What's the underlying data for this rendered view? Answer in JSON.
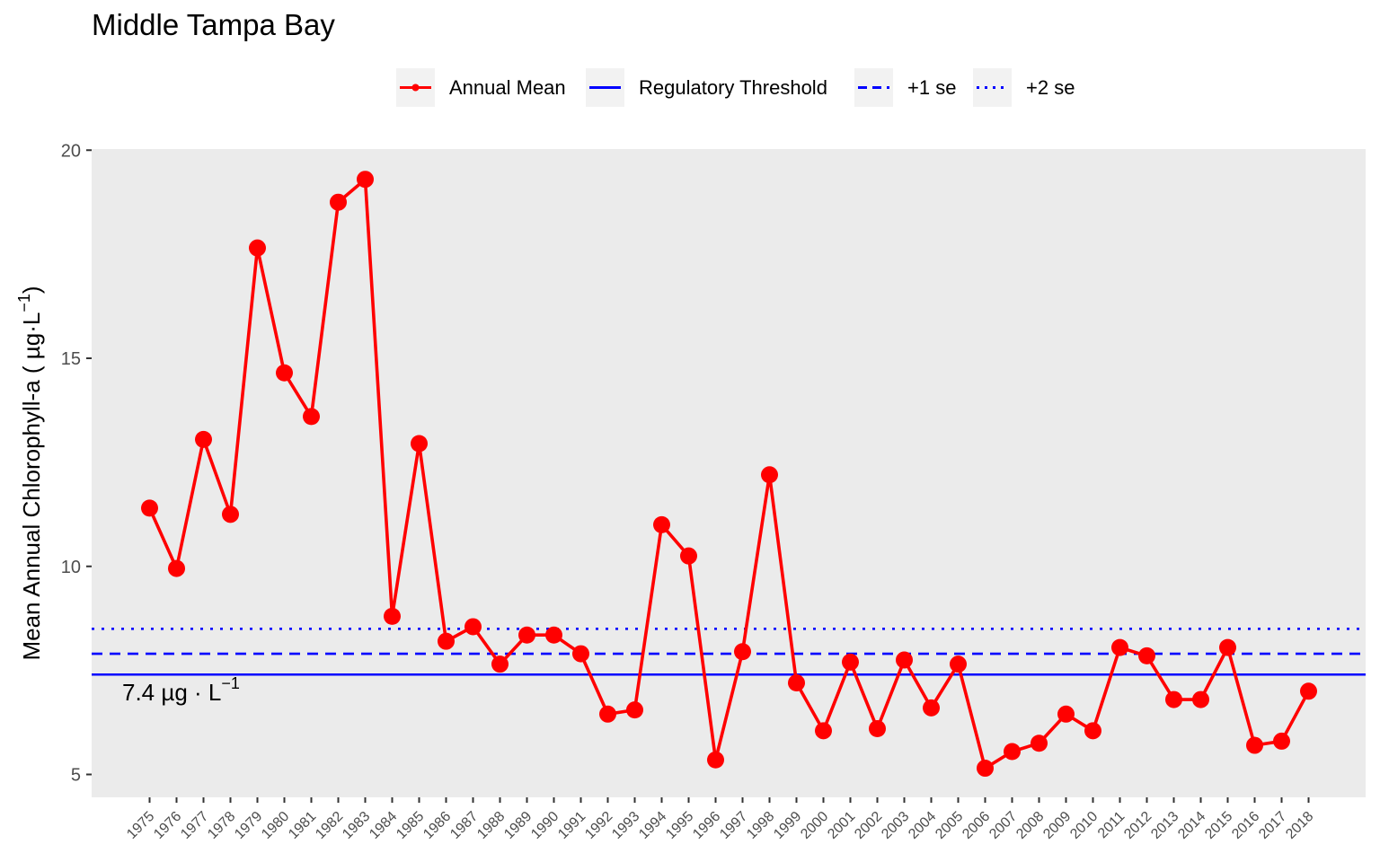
{
  "chart_data": {
    "type": "line",
    "title": "Middle Tampa Bay",
    "ylabel_main": "Mean Annual Chlorophyll-a ( µg·L",
    "ylabel_sup": "−1",
    "ylabel_close": ")",
    "ylim": [
      4.5,
      20
    ],
    "yticks": [
      5,
      10,
      15,
      20
    ],
    "x": [
      1975,
      1976,
      1977,
      1978,
      1979,
      1980,
      1981,
      1982,
      1983,
      1984,
      1985,
      1986,
      1987,
      1988,
      1989,
      1990,
      1991,
      1992,
      1993,
      1994,
      1995,
      1996,
      1997,
      1998,
      1999,
      2000,
      2001,
      2002,
      2003,
      2004,
      2005,
      2006,
      2007,
      2008,
      2009,
      2010,
      2011,
      2012,
      2013,
      2014,
      2015,
      2016,
      2017,
      2018
    ],
    "series": [
      {
        "name": "Annual Mean",
        "color": "#ff0000",
        "values": [
          11.4,
          9.95,
          13.05,
          11.25,
          17.65,
          14.65,
          13.6,
          18.75,
          19.3,
          8.8,
          12.95,
          8.2,
          8.55,
          7.65,
          8.35,
          8.35,
          7.9,
          6.45,
          6.55,
          11.0,
          10.25,
          5.35,
          7.95,
          12.2,
          7.2,
          6.05,
          7.7,
          6.1,
          7.75,
          6.6,
          7.65,
          5.15,
          5.55,
          5.75,
          6.45,
          6.05,
          8.05,
          7.85,
          6.8,
          6.8,
          8.05,
          5.7,
          5.8,
          7.0
        ]
      }
    ],
    "reference_lines": [
      {
        "name": "Regulatory Threshold",
        "value": 7.4,
        "style": "solid",
        "color": "#0000ff"
      },
      {
        "name": "+1 se",
        "value": 7.9,
        "style": "dashed",
        "color": "#0000ff"
      },
      {
        "name": "+2 se",
        "value": 8.5,
        "style": "dotted",
        "color": "#0000ff"
      }
    ],
    "annotation": {
      "text": "7.4 µg · L",
      "sup": "−1"
    },
    "legend": {
      "position": "top"
    },
    "grid": false,
    "panel_background": "#ebebeb"
  }
}
